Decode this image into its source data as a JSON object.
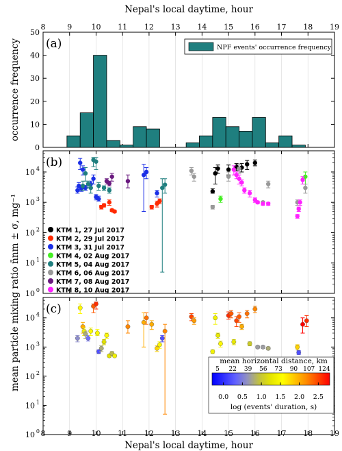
{
  "chart_data": [
    {
      "panel": "(a)",
      "type": "bar",
      "x_label": "Nepal's local daytime, hour",
      "y_label": "occurrence frequency",
      "xlim": [
        8,
        19
      ],
      "ylim": [
        0,
        50
      ],
      "x_ticks": [
        "8",
        "9",
        "10",
        "11",
        "12",
        "13",
        "14",
        "15",
        "16",
        "17",
        "18",
        "19"
      ],
      "y_ticks": [
        "0",
        "10",
        "20",
        "30",
        "40",
        "50"
      ],
      "legend": "NPF events' occurrence frequency",
      "bar_color": "#1f7f7f",
      "bin_width": 0.5,
      "bins": [
        {
          "x0": 8.9,
          "v": 5
        },
        {
          "x0": 9.4,
          "v": 15
        },
        {
          "x0": 9.9,
          "v": 40
        },
        {
          "x0": 10.4,
          "v": 3
        },
        {
          "x0": 10.9,
          "v": 1
        },
        {
          "x0": 11.4,
          "v": 9
        },
        {
          "x0": 11.9,
          "v": 8
        },
        {
          "x0": 13.4,
          "v": 2
        },
        {
          "x0": 13.9,
          "v": 5
        },
        {
          "x0": 14.4,
          "v": 13
        },
        {
          "x0": 14.9,
          "v": 9
        },
        {
          "x0": 15.4,
          "v": 7
        },
        {
          "x0": 15.9,
          "v": 13
        },
        {
          "x0": 16.4,
          "v": 2
        },
        {
          "x0": 16.9,
          "v": 5
        },
        {
          "x0": 17.4,
          "v": 1
        }
      ]
    },
    {
      "panel": "(b)",
      "type": "scatter",
      "y_scale": "log",
      "ylim": [
        1,
        50000
      ],
      "y_ticks": [
        "10",
        "10",
        "10",
        "10",
        "10"
      ],
      "y_tick_exp": [
        "0",
        "1",
        "2",
        "3",
        "4"
      ],
      "y_label": "mean particle mixing ratio n̄nm ± σ, mg⁻¹",
      "series": [
        {
          "name": "KTM 1, 27 Jul 2017",
          "color": "#000000",
          "points": [
            [
              14.4,
              2300,
              2000,
              2800
            ],
            [
              14.5,
              9000,
              4000,
              14000
            ],
            [
              14.6,
              13000,
              9000,
              17000
            ],
            [
              15.0,
              12000,
              8000,
              17000
            ],
            [
              15.3,
              15000,
              11000,
              19000
            ],
            [
              15.5,
              14000,
              10000,
              19000
            ],
            [
              15.7,
              18000,
              12000,
              24000
            ],
            [
              16.0,
              20000,
              16000,
              25000
            ]
          ]
        },
        {
          "name": "KTM 2, 29 Jul 2017",
          "color": "#ff2a00",
          "points": [
            [
              10.2,
              700,
              600,
              800
            ],
            [
              10.3,
              800,
              700,
              900
            ],
            [
              10.5,
              1000,
              800,
              1200
            ],
            [
              10.6,
              550,
              500,
              600
            ],
            [
              10.7,
              500,
              450,
              550
            ],
            [
              12.1,
              700,
              600,
              800
            ],
            [
              12.3,
              900,
              700,
              1100
            ],
            [
              12.4,
              1100,
              900,
              1300
            ]
          ]
        },
        {
          "name": "KTM 3, 31 Jul 2017",
          "color": "#1a2ee6",
          "points": [
            [
              9.3,
              2500,
              2000,
              3200
            ],
            [
              9.35,
              3500,
              2500,
              4500
            ],
            [
              9.4,
              20000,
              12000,
              28000
            ],
            [
              9.45,
              2800,
              2300,
              3400
            ],
            [
              9.5,
              12000,
              8000,
              16000
            ],
            [
              9.6,
              3000,
              2500,
              3600
            ],
            [
              9.8,
              4000,
              3000,
              5000
            ],
            [
              9.9,
              6000,
              4000,
              8000
            ],
            [
              10.0,
              1500,
              1200,
              1800
            ],
            [
              10.1,
              1300,
              1100,
              1600
            ],
            [
              11.8,
              8000,
              500,
              18000
            ],
            [
              11.9,
              10000,
              6000,
              14000
            ],
            [
              12.3,
              2000,
              1500,
              2500
            ]
          ]
        },
        {
          "name": "KTM 4, 02 Aug 2017",
          "color": "#44ee22",
          "points": [
            [
              14.7,
              1300,
              1000,
              1600
            ],
            [
              17.9,
              7000,
              4000,
              10000
            ]
          ]
        },
        {
          "name": "KTM 5, 04 Aug 2017",
          "color": "#1f7f7f",
          "points": [
            [
              9.5,
              3500,
              2500,
              5000
            ],
            [
              9.6,
              9000,
              5000,
              14000
            ],
            [
              9.7,
              4000,
              3000,
              5000
            ],
            [
              9.8,
              3000,
              2000,
              4000
            ],
            [
              9.9,
              25000,
              15000,
              30000
            ],
            [
              10.0,
              22000,
              12000,
              30000
            ],
            [
              10.1,
              3500,
              2500,
              4500
            ],
            [
              10.3,
              3000,
              2500,
              3500
            ],
            [
              10.5,
              2500,
              2000,
              3000
            ],
            [
              12.5,
              3000,
              5,
              6000
            ],
            [
              12.6,
              3800,
              2000,
              6000
            ]
          ]
        },
        {
          "name": "KTM 6, 06 Aug 2017",
          "color": "#999999",
          "points": [
            [
              13.6,
              11000,
              8000,
              14000
            ],
            [
              13.7,
              7000,
              5000,
              9000
            ],
            [
              14.4,
              700,
              600,
              800
            ],
            [
              15.0,
              7000,
              5000,
              10000
            ],
            [
              15.4,
              13000,
              9000,
              18000
            ],
            [
              16.3,
              1000,
              900,
              1100
            ],
            [
              16.5,
              4000,
              3000,
              5000
            ],
            [
              17.6,
              1000,
              800,
              1200
            ],
            [
              17.9,
              3000,
              2000,
              4000
            ]
          ]
        },
        {
          "name": "KTM 7, 08 Aug 2017",
          "color": "#6a1a7f",
          "points": [
            [
              10.4,
              5000,
              4000,
              6000
            ],
            [
              10.5,
              4200,
              3500,
              5000
            ],
            [
              10.6,
              7000,
              5000,
              9000
            ],
            [
              11.2,
              5000,
              3000,
              8000
            ]
          ]
        },
        {
          "name": "KTM 8, 10 Aug 2017",
          "color": "#ff22ff",
          "points": [
            [
              15.2,
              12000,
              8000,
              16000
            ],
            [
              15.3,
              8000,
              6000,
              10000
            ],
            [
              15.4,
              6000,
              4000,
              8000
            ],
            [
              15.5,
              4500,
              3500,
              5500
            ],
            [
              15.6,
              2500,
              2000,
              3000
            ],
            [
              15.8,
              2000,
              1500,
              2500
            ],
            [
              16.0,
              1200,
              1000,
              1400
            ],
            [
              16.1,
              1000,
              900,
              1100
            ],
            [
              16.3,
              900,
              800,
              1000
            ],
            [
              16.5,
              900,
              800,
              1000
            ],
            [
              17.6,
              350,
              300,
              400
            ],
            [
              17.65,
              600,
              500,
              700
            ],
            [
              17.7,
              1000,
              800,
              1200
            ],
            [
              17.8,
              5500,
              4000,
              7000
            ]
          ]
        }
      ]
    },
    {
      "panel": "(c)",
      "type": "scatter",
      "y_scale": "log",
      "ylim": [
        1,
        50000
      ],
      "colorbar": {
        "title": "mean horizontal distance, km",
        "top_ticks": [
          "5",
          "22",
          "39",
          "56",
          "73",
          "90",
          "107",
          "124"
        ],
        "bottom_ticks": [
          "0.0",
          "0.5",
          "1.0",
          "1.5",
          "2.0",
          "2.5"
        ],
        "label": "log (events' duration, s)",
        "range": [
          -0.3,
          2.8
        ]
      },
      "points": [
        [
          9.3,
          2000,
          0.6,
          1500,
          2500
        ],
        [
          9.4,
          22000,
          1.6,
          14000,
          30000
        ],
        [
          9.5,
          5000,
          2.0,
          3000,
          7000
        ],
        [
          9.55,
          3500,
          1.5,
          2500,
          4500
        ],
        [
          9.6,
          2800,
          0.8,
          2000,
          3500
        ],
        [
          9.7,
          2000,
          0.4,
          1600,
          2500
        ],
        [
          9.8,
          3500,
          1.5,
          2500,
          4500
        ],
        [
          9.9,
          25000,
          2.4,
          15000,
          30000
        ],
        [
          10.0,
          30000,
          2.6,
          20000,
          35000
        ],
        [
          10.05,
          3000,
          1.5,
          2500,
          4000
        ],
        [
          10.1,
          700,
          0.2,
          600,
          800
        ],
        [
          10.2,
          900,
          0.8,
          700,
          1100
        ],
        [
          10.3,
          1500,
          1.2,
          1200,
          1800
        ],
        [
          10.4,
          2500,
          1.6,
          2000,
          3000
        ],
        [
          10.5,
          500,
          1.2,
          450,
          550
        ],
        [
          10.6,
          600,
          0.9,
          500,
          700
        ],
        [
          10.7,
          500,
          1.4,
          450,
          550
        ],
        [
          11.2,
          5000,
          2.2,
          3000,
          8000
        ],
        [
          11.8,
          7000,
          2.0,
          1000,
          15000
        ],
        [
          11.9,
          10000,
          2.3,
          6000,
          15000
        ],
        [
          12.1,
          6000,
          2.0,
          4000,
          8000
        ],
        [
          12.3,
          900,
          1.8,
          700,
          1100
        ],
        [
          12.4,
          1200,
          1.6,
          900,
          1500
        ],
        [
          12.5,
          2000,
          0.2,
          1500,
          2500
        ],
        [
          12.6,
          3500,
          2.2,
          5,
          6000
        ],
        [
          13.6,
          11000,
          2.5,
          8000,
          14000
        ],
        [
          13.7,
          8000,
          2.1,
          6000,
          10000
        ],
        [
          14.4,
          700,
          1.4,
          600,
          800
        ],
        [
          14.5,
          10000,
          1.4,
          6000,
          14000
        ],
        [
          14.6,
          2500,
          1.3,
          2000,
          3000
        ],
        [
          14.7,
          1300,
          1.6,
          1000,
          1600
        ],
        [
          15.0,
          12000,
          2.6,
          9000,
          16000
        ],
        [
          15.1,
          14000,
          2.4,
          10000,
          18000
        ],
        [
          15.2,
          1500,
          1.3,
          1200,
          1800
        ],
        [
          15.3,
          8000,
          2.5,
          5000,
          11000
        ],
        [
          15.4,
          11000,
          2.4,
          7000,
          15000
        ],
        [
          15.5,
          5000,
          2.0,
          4000,
          6000
        ],
        [
          15.7,
          14000,
          2.3,
          10000,
          18000
        ],
        [
          15.8,
          1300,
          1.0,
          1100,
          1500
        ],
        [
          16.0,
          20000,
          2.2,
          15000,
          25000
        ],
        [
          16.1,
          1000,
          0.7,
          900,
          1100
        ],
        [
          16.3,
          1000,
          0.7,
          900,
          1100
        ],
        [
          16.5,
          900,
          0.8,
          800,
          1000
        ],
        [
          17.6,
          1000,
          1.8,
          800,
          1200
        ],
        [
          17.65,
          650,
          0.2,
          550,
          750
        ],
        [
          17.7,
          350,
          1.8,
          300,
          400
        ],
        [
          17.8,
          6000,
          2.8,
          3000,
          10000
        ],
        [
          17.95,
          8000,
          2.6,
          5000,
          12000
        ]
      ]
    }
  ]
}
